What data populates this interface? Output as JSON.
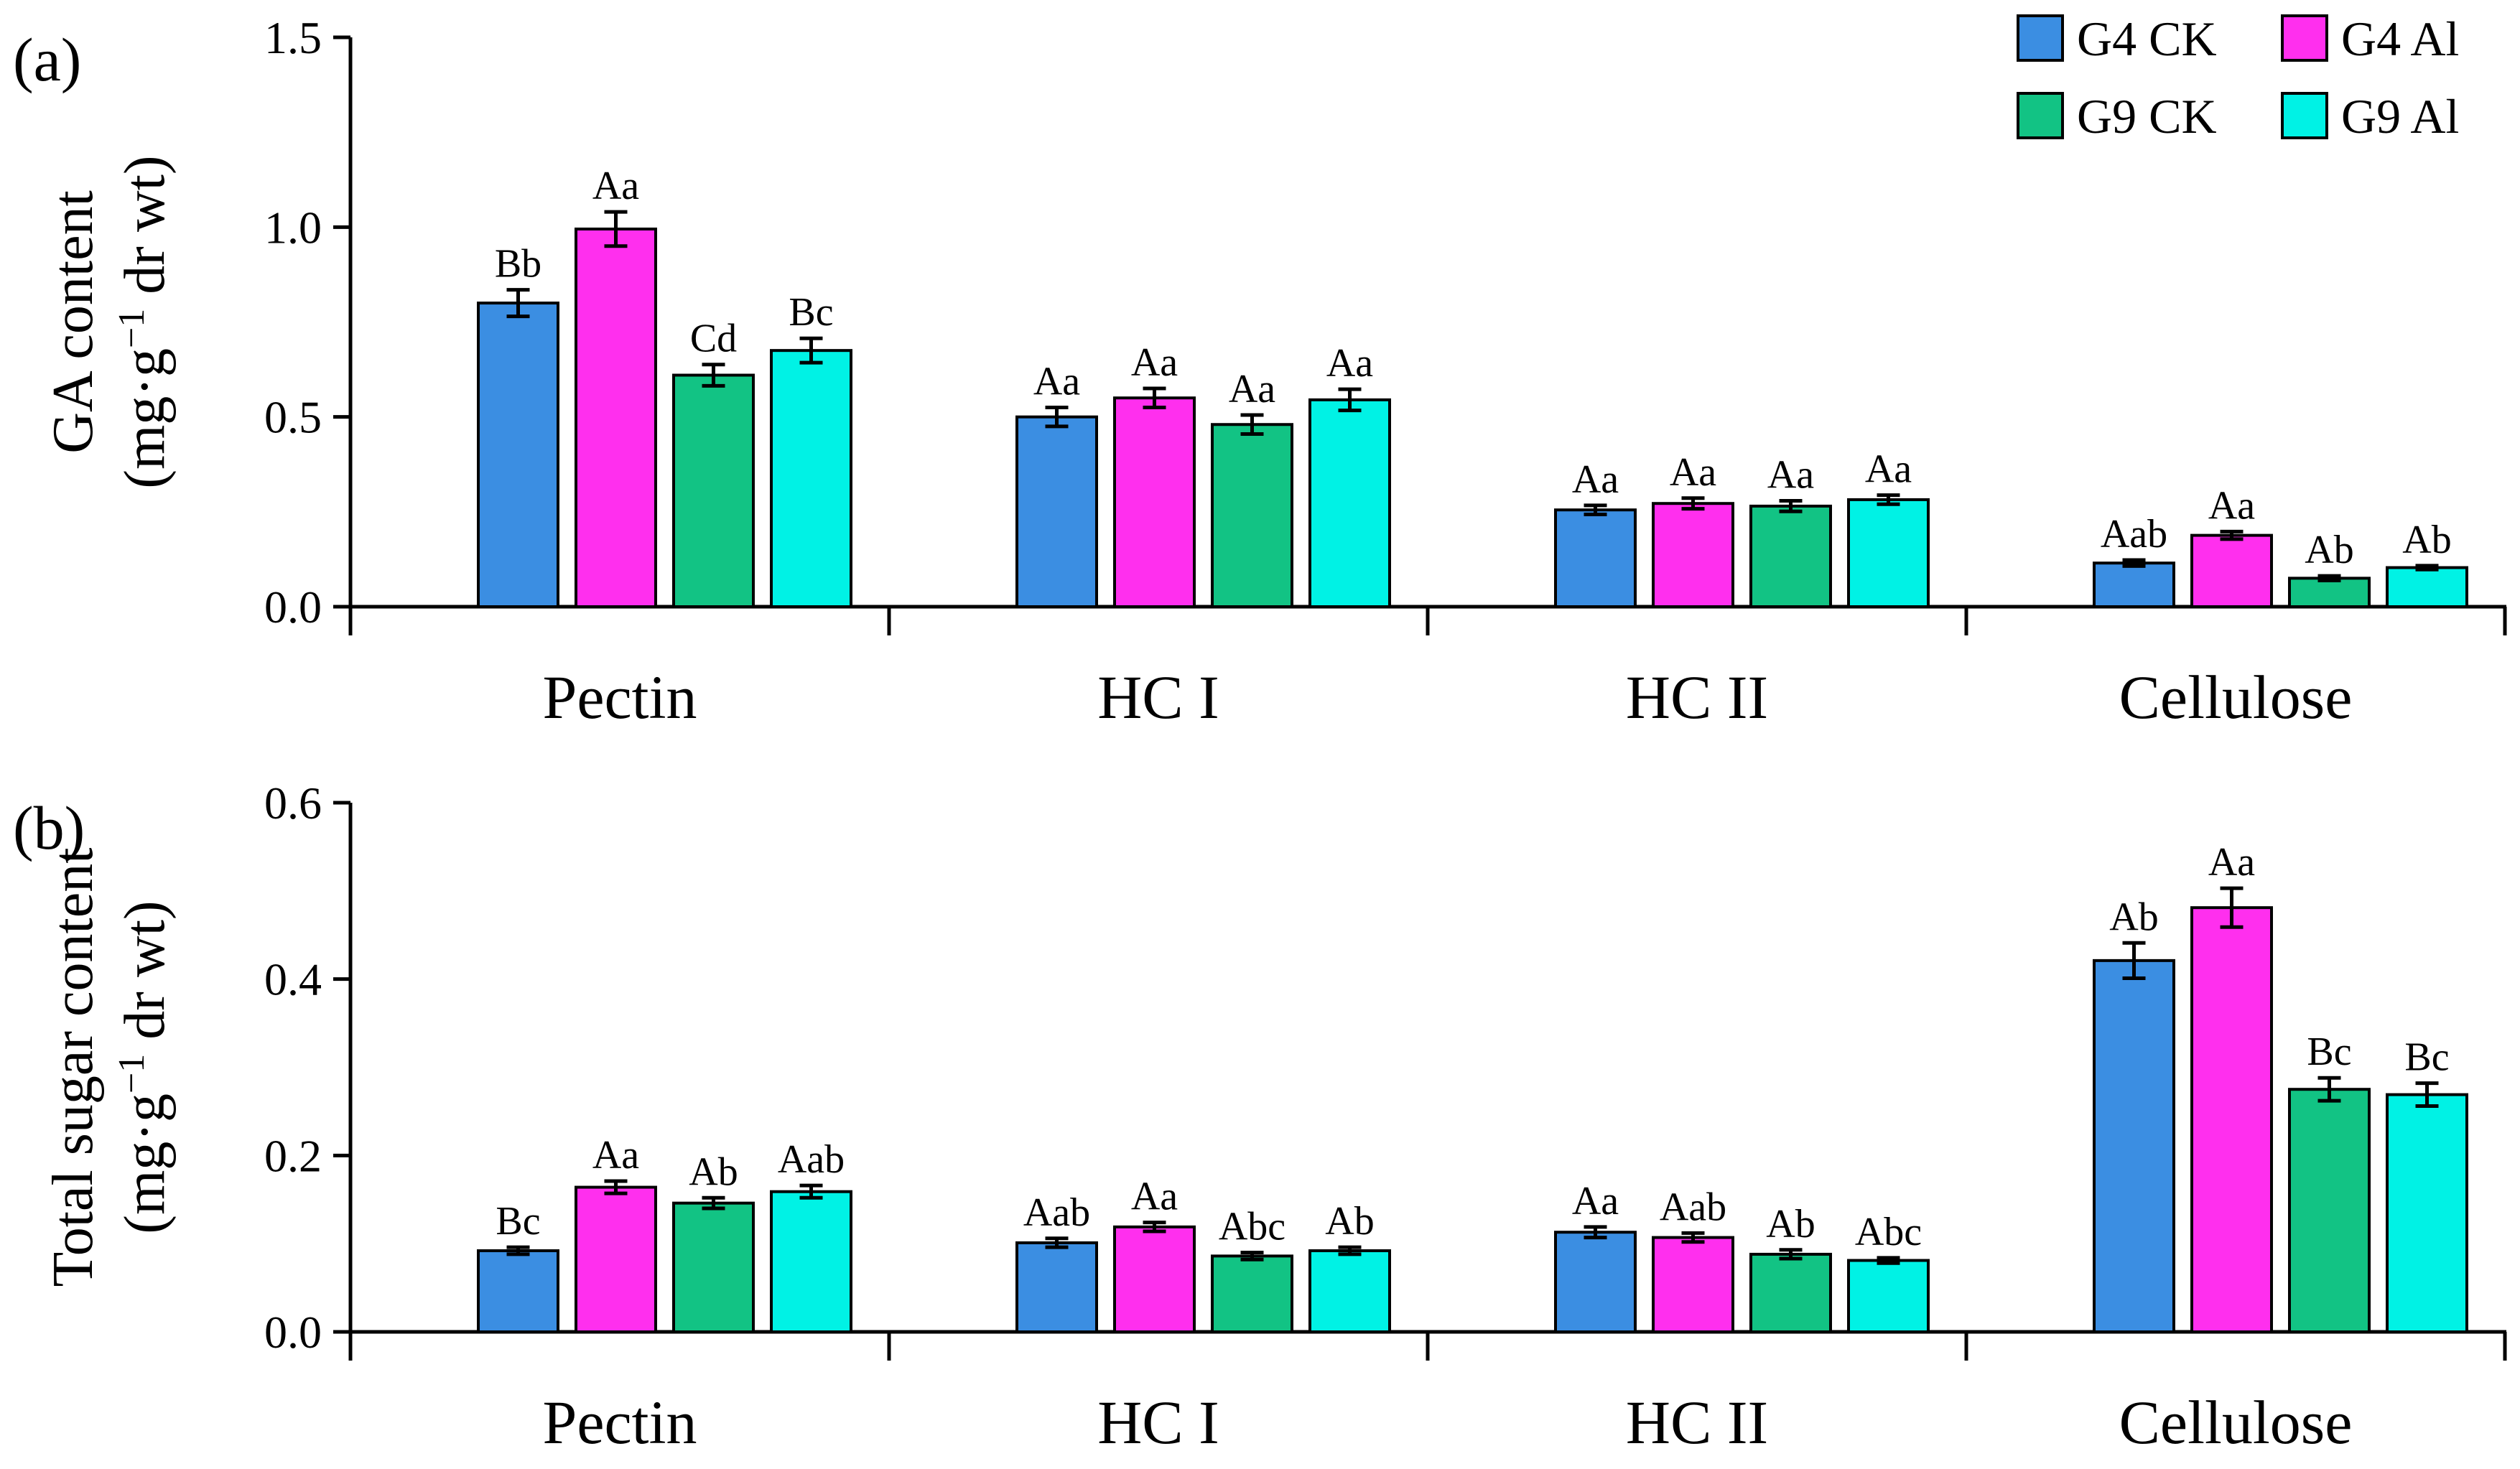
{
  "colors": {
    "G4 CK": "#3b8ee2",
    "G4 Al": "#ff2fee",
    "G9 CK": "#12c384",
    "G9 Al": "#00f2e5"
  },
  "legend": [
    "G4 CK",
    "G4 Al",
    "G9 CK",
    "G9 Al"
  ],
  "chart_data": [
    {
      "type": "bar",
      "panel_label": "(a)",
      "ylabel_line1": "GA content",
      "ylabel_line2_pre": "(mg·g",
      "ylabel_line2_sup": "−1",
      "ylabel_line2_post": " dr wt)",
      "ylim": [
        0,
        1.5
      ],
      "yticks": [
        "0.0",
        "0.5",
        "1.0",
        "1.5"
      ],
      "ytick_values": [
        0,
        0.5,
        1.0,
        1.5
      ],
      "categories": [
        "Pectin",
        "HC I",
        "HC II",
        "Cellulose"
      ],
      "series": [
        {
          "name": "G4 CK",
          "values": [
            0.8,
            0.5,
            0.255,
            0.115
          ],
          "errors": [
            0.035,
            0.025,
            0.012,
            0.008
          ],
          "labels": [
            "Bb",
            "Aa",
            "Aa",
            "Aab"
          ]
        },
        {
          "name": "G4 Al",
          "values": [
            0.995,
            0.55,
            0.272,
            0.188
          ],
          "errors": [
            0.045,
            0.025,
            0.014,
            0.01
          ],
          "labels": [
            "Aa",
            "Aa",
            "Aa",
            "Aa"
          ]
        },
        {
          "name": "G9 CK",
          "values": [
            0.61,
            0.48,
            0.265,
            0.075
          ],
          "errors": [
            0.028,
            0.025,
            0.014,
            0.006
          ],
          "labels": [
            "Cd",
            "Aa",
            "Aa",
            "Ab"
          ]
        },
        {
          "name": "G9 Al",
          "values": [
            0.675,
            0.545,
            0.282,
            0.103
          ],
          "errors": [
            0.032,
            0.028,
            0.012,
            0.005
          ],
          "labels": [
            "Bc",
            "Aa",
            "Aa",
            "Ab"
          ]
        }
      ]
    },
    {
      "type": "bar",
      "panel_label": "(b)",
      "ylabel_line1": "Total sugar content",
      "ylabel_line2_pre": "(mg·g",
      "ylabel_line2_sup": "−1",
      "ylabel_line2_post": " dr wt)",
      "ylim": [
        0,
        0.6
      ],
      "yticks": [
        "0.0",
        "0.2",
        "0.4",
        "0.6"
      ],
      "ytick_values": [
        0,
        0.2,
        0.4,
        0.6
      ],
      "categories": [
        "Pectin",
        "HC I",
        "HC II",
        "Cellulose"
      ],
      "series": [
        {
          "name": "G4 CK",
          "values": [
            0.092,
            0.101,
            0.113,
            0.421
          ],
          "errors": [
            0.004,
            0.005,
            0.006,
            0.02
          ],
          "labels": [
            "Bc",
            "Aab",
            "Aa",
            "Ab"
          ]
        },
        {
          "name": "G4 Al",
          "values": [
            0.164,
            0.119,
            0.107,
            0.481
          ],
          "errors": [
            0.007,
            0.005,
            0.005,
            0.022
          ],
          "labels": [
            "Aa",
            "Aa",
            "Aab",
            "Aa"
          ]
        },
        {
          "name": "G9 CK",
          "values": [
            0.146,
            0.086,
            0.088,
            0.275
          ],
          "errors": [
            0.006,
            0.004,
            0.005,
            0.013
          ],
          "labels": [
            "Ab",
            "Abc",
            "Ab",
            "Bc"
          ]
        },
        {
          "name": "G9 Al",
          "values": [
            0.159,
            0.092,
            0.081,
            0.269
          ],
          "errors": [
            0.007,
            0.004,
            0.003,
            0.013
          ],
          "labels": [
            "Aab",
            "Ab",
            "Abc",
            "Bc"
          ]
        }
      ]
    }
  ]
}
